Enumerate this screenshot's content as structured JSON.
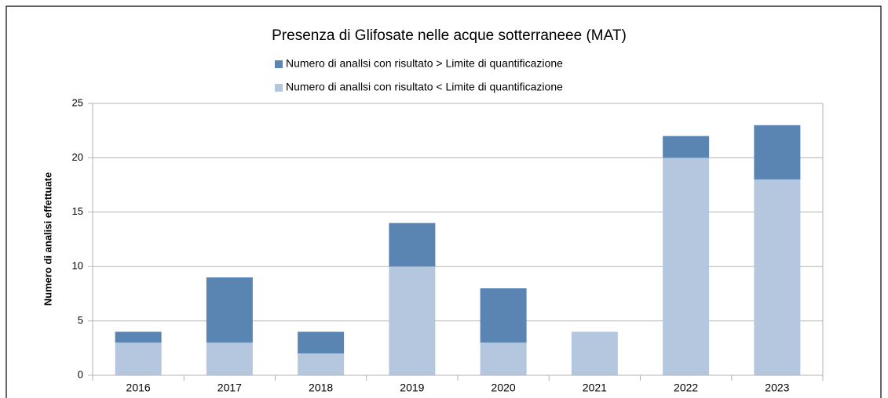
{
  "chart_data": {
    "type": "stacked_bar",
    "title": "Presenza di Glifosate nelle acque sotterraneee (MAT)",
    "y_label": "Numero di analisi effettuate",
    "categories": [
      "2016",
      "2017",
      "2018",
      "2019",
      "2020",
      "2021",
      "2022",
      "2023"
    ],
    "series": [
      {
        "name": "Numero di anallsi con risultato > Limite di quantificazione",
        "color": "#5a84b2",
        "values": [
          1,
          6,
          2,
          4,
          5,
          0,
          2,
          5
        ]
      },
      {
        "name": "Numero di anallsi con risultato < Limite di quantificazione",
        "color": "#b4c7de",
        "values": [
          3,
          3,
          2,
          10,
          3,
          4,
          20,
          18
        ]
      }
    ],
    "ylim": [
      0,
      25
    ],
    "yticks": [
      0,
      5,
      10,
      15,
      20,
      25
    ],
    "grid": true
  }
}
